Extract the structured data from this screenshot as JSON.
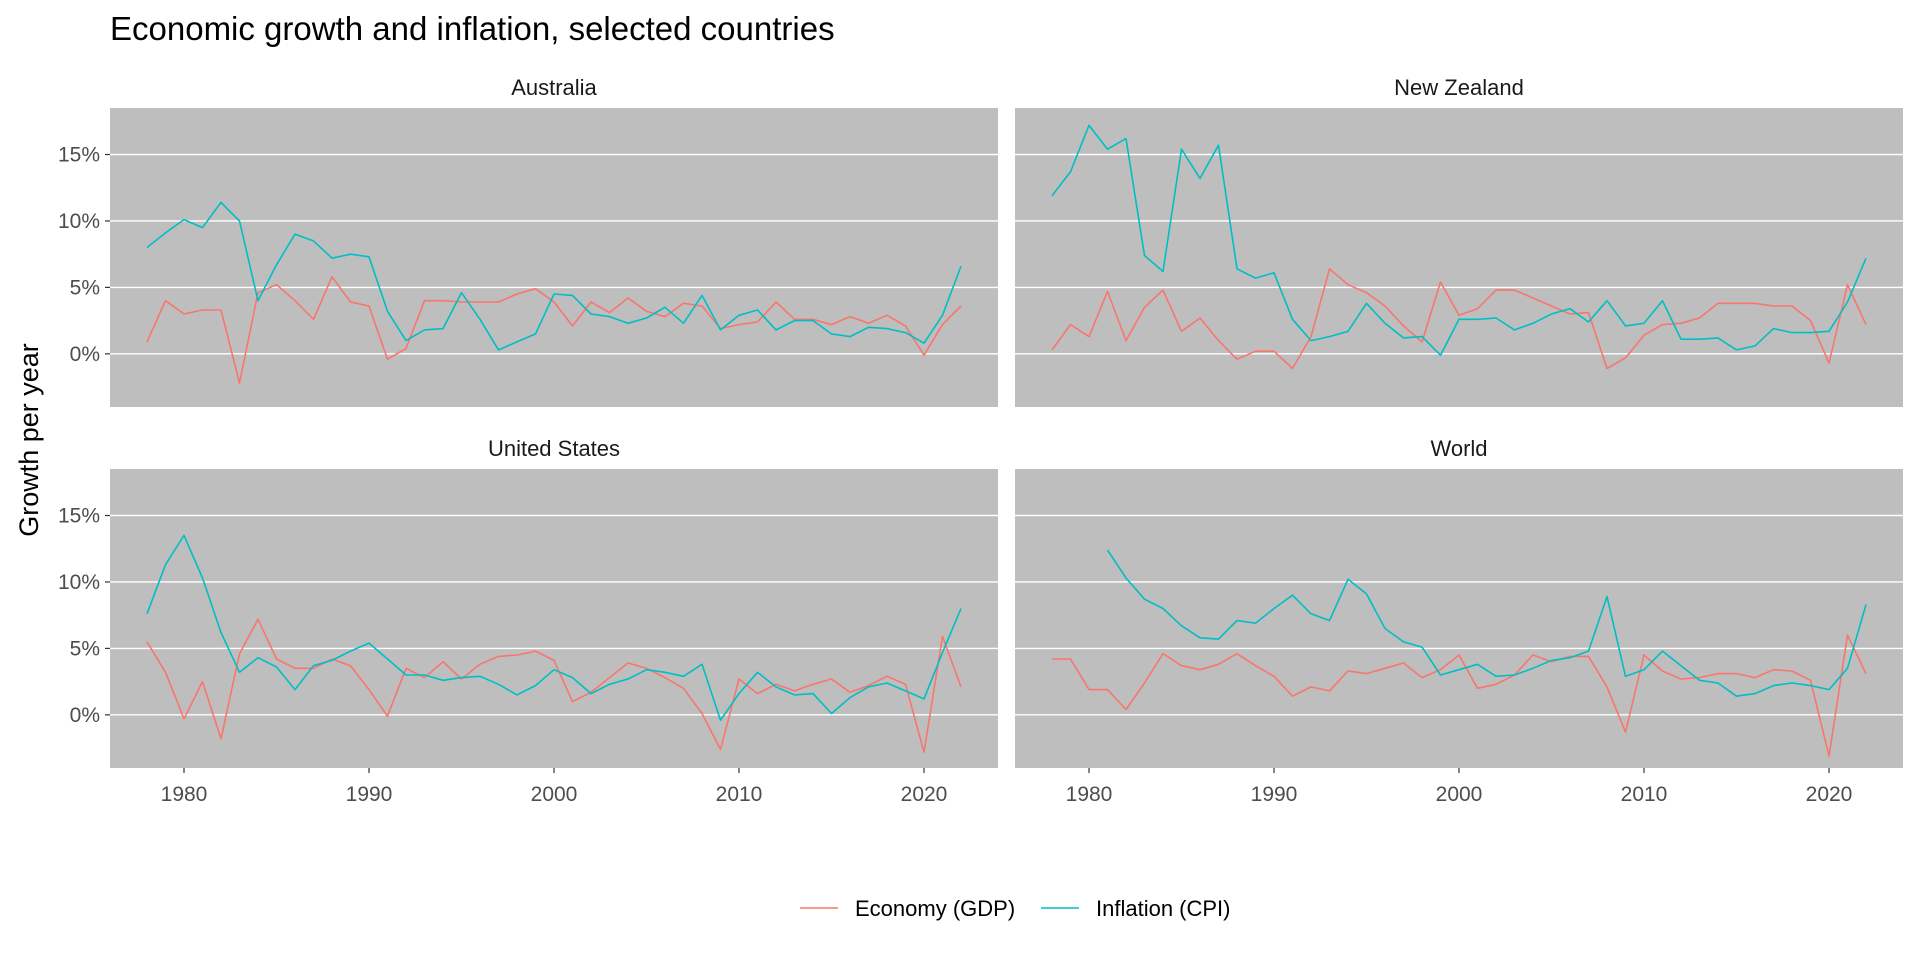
{
  "chart_data": {
    "type": "line",
    "title": "Economic growth and inflation, selected countries",
    "xlabel": "",
    "ylabel": "Growth per year",
    "xlim": [
      1976,
      2024
    ],
    "ylim": [
      -4,
      18.5
    ],
    "x_ticks": [
      1980,
      1990,
      2000,
      2010,
      2020
    ],
    "x_tick_labels": [
      "1980",
      "1990",
      "2000",
      "2010",
      "2020"
    ],
    "y_ticks": [
      0,
      5,
      10,
      15
    ],
    "y_tick_labels": [
      "0%",
      "5%",
      "10%",
      "15%"
    ],
    "grid": true,
    "legend_position": "bottom",
    "colors": {
      "panel_bg": "#bebebe",
      "grid": "#ffffff",
      "gdp": "#f8766d",
      "cpi": "#00bfc4"
    },
    "series_names": [
      "Economy (GDP)",
      "Inflation (CPI)"
    ],
    "panels": [
      {
        "name": "Australia",
        "x": [
          1978,
          1979,
          1980,
          1981,
          1982,
          1983,
          1984,
          1985,
          1986,
          1987,
          1988,
          1989,
          1990,
          1991,
          1992,
          1993,
          1994,
          1995,
          1996,
          1997,
          1998,
          1999,
          2000,
          2001,
          2002,
          2003,
          2004,
          2005,
          2006,
          2007,
          2008,
          2009,
          2010,
          2011,
          2012,
          2013,
          2014,
          2015,
          2016,
          2017,
          2018,
          2019,
          2020,
          2021,
          2022
        ],
        "series": [
          {
            "name": "Economy (GDP)",
            "values": [
              0.9,
              4.0,
              3.0,
              3.3,
              3.3,
              -2.2,
              4.6,
              5.2,
              4.0,
              2.6,
              5.8,
              3.9,
              3.6,
              -0.4,
              0.4,
              4.0,
              4.0,
              3.9,
              3.9,
              3.9,
              4.5,
              4.9,
              3.9,
              2.1,
              3.9,
              3.1,
              4.2,
              3.2,
              2.8,
              3.8,
              3.6,
              1.9,
              2.2,
              2.4,
              3.9,
              2.6,
              2.6,
              2.2,
              2.8,
              2.3,
              2.9,
              2.1,
              -0.1,
              2.2,
              3.6
            ]
          },
          {
            "name": "Inflation (CPI)",
            "values": [
              8.0,
              9.1,
              10.1,
              9.5,
              11.4,
              10.0,
              4.0,
              6.7,
              9.0,
              8.5,
              7.2,
              7.5,
              7.3,
              3.2,
              1.0,
              1.8,
              1.9,
              4.6,
              2.6,
              0.3,
              0.9,
              1.5,
              4.5,
              4.4,
              3.0,
              2.8,
              2.3,
              2.7,
              3.5,
              2.3,
              4.4,
              1.8,
              2.9,
              3.3,
              1.8,
              2.5,
              2.5,
              1.5,
              1.3,
              2.0,
              1.9,
              1.6,
              0.8,
              2.9,
              6.6
            ]
          }
        ]
      },
      {
        "name": "New Zealand",
        "x": [
          1978,
          1979,
          1980,
          1981,
          1982,
          1983,
          1984,
          1985,
          1986,
          1987,
          1988,
          1989,
          1990,
          1991,
          1992,
          1993,
          1994,
          1995,
          1996,
          1997,
          1998,
          1999,
          2000,
          2001,
          2002,
          2003,
          2004,
          2005,
          2006,
          2007,
          2008,
          2009,
          2010,
          2011,
          2012,
          2013,
          2014,
          2015,
          2016,
          2017,
          2018,
          2019,
          2020,
          2021,
          2022
        ],
        "series": [
          {
            "name": "Economy (GDP)",
            "values": [
              0.3,
              2.2,
              1.3,
              4.7,
              1.0,
              3.5,
              4.8,
              1.7,
              2.7,
              1.0,
              -0.4,
              0.2,
              0.2,
              -1.1,
              1.3,
              6.4,
              5.2,
              4.6,
              3.6,
              2.1,
              0.9,
              5.4,
              2.9,
              3.4,
              4.8,
              4.8,
              4.2,
              3.6,
              3.0,
              3.1,
              -1.1,
              -0.3,
              1.4,
              2.2,
              2.3,
              2.7,
              3.8,
              3.8,
              3.8,
              3.6,
              3.6,
              2.5,
              -0.7,
              5.2,
              2.2
            ]
          },
          {
            "name": "Inflation (CPI)",
            "values": [
              11.9,
              13.7,
              17.2,
              15.4,
              16.2,
              7.4,
              6.2,
              15.4,
              13.2,
              15.7,
              6.4,
              5.7,
              6.1,
              2.6,
              1.0,
              1.3,
              1.7,
              3.8,
              2.3,
              1.2,
              1.3,
              -0.1,
              2.6,
              2.6,
              2.7,
              1.8,
              2.3,
              3.0,
              3.4,
              2.4,
              4.0,
              2.1,
              2.3,
              4.0,
              1.1,
              1.1,
              1.2,
              0.3,
              0.6,
              1.9,
              1.6,
              1.6,
              1.7,
              3.9,
              7.2
            ]
          }
        ]
      },
      {
        "name": "United States",
        "x": [
          1978,
          1979,
          1980,
          1981,
          1982,
          1983,
          1984,
          1985,
          1986,
          1987,
          1988,
          1989,
          1990,
          1991,
          1992,
          1993,
          1994,
          1995,
          1996,
          1997,
          1998,
          1999,
          2000,
          2001,
          2002,
          2003,
          2004,
          2005,
          2006,
          2007,
          2008,
          2009,
          2010,
          2011,
          2012,
          2013,
          2014,
          2015,
          2016,
          2017,
          2018,
          2019,
          2020,
          2021,
          2022
        ],
        "series": [
          {
            "name": "Economy (GDP)",
            "values": [
              5.5,
              3.2,
              -0.3,
              2.5,
              -1.8,
              4.6,
              7.2,
              4.2,
              3.5,
              3.5,
              4.2,
              3.7,
              1.9,
              -0.1,
              3.5,
              2.8,
              4.0,
              2.7,
              3.8,
              4.4,
              4.5,
              4.8,
              4.1,
              1.0,
              1.7,
              2.8,
              3.9,
              3.5,
              2.8,
              2.0,
              0.1,
              -2.6,
              2.7,
              1.6,
              2.3,
              1.8,
              2.3,
              2.7,
              1.7,
              2.2,
              2.9,
              2.3,
              -2.8,
              5.9,
              2.1
            ]
          },
          {
            "name": "Inflation (CPI)",
            "values": [
              7.6,
              11.3,
              13.5,
              10.3,
              6.2,
              3.2,
              4.3,
              3.6,
              1.9,
              3.7,
              4.1,
              4.8,
              5.4,
              4.2,
              3.0,
              3.0,
              2.6,
              2.8,
              2.9,
              2.3,
              1.5,
              2.2,
              3.4,
              2.8,
              1.6,
              2.3,
              2.7,
              3.4,
              3.2,
              2.9,
              3.8,
              -0.4,
              1.6,
              3.2,
              2.1,
              1.5,
              1.6,
              0.1,
              1.3,
              2.1,
              2.4,
              1.8,
              1.2,
              4.7,
              8.0
            ]
          }
        ]
      },
      {
        "name": "World",
        "x": [
          1978,
          1979,
          1980,
          1981,
          1982,
          1983,
          1984,
          1985,
          1986,
          1987,
          1988,
          1989,
          1990,
          1991,
          1992,
          1993,
          1994,
          1995,
          1996,
          1997,
          1998,
          1999,
          2000,
          2001,
          2002,
          2003,
          2004,
          2005,
          2006,
          2007,
          2008,
          2009,
          2010,
          2011,
          2012,
          2013,
          2014,
          2015,
          2016,
          2017,
          2018,
          2019,
          2020,
          2021,
          2022
        ],
        "series": [
          {
            "name": "Economy (GDP)",
            "values": [
              4.2,
              4.2,
              1.9,
              1.9,
              0.4,
              2.4,
              4.6,
              3.7,
              3.4,
              3.8,
              4.6,
              3.7,
              2.9,
              1.4,
              2.1,
              1.8,
              3.3,
              3.1,
              3.5,
              3.9,
              2.8,
              3.4,
              4.5,
              2.0,
              2.3,
              3.0,
              4.5,
              4.0,
              4.4,
              4.4,
              2.1,
              -1.3,
              4.5,
              3.3,
              2.7,
              2.8,
              3.1,
              3.1,
              2.8,
              3.4,
              3.3,
              2.6,
              -3.1,
              6.0,
              3.1
            ]
          },
          {
            "name": "Inflation (CPI)",
            "values": [
              null,
              null,
              null,
              12.4,
              10.3,
              8.7,
              8.0,
              6.7,
              5.8,
              5.7,
              7.1,
              6.9,
              8.0,
              9.0,
              7.6,
              7.1,
              10.2,
              9.1,
              6.5,
              5.5,
              5.1,
              3.0,
              3.4,
              3.8,
              2.9,
              3.0,
              3.5,
              4.1,
              4.3,
              4.8,
              8.9,
              2.9,
              3.4,
              4.8,
              3.7,
              2.6,
              2.4,
              1.4,
              1.6,
              2.2,
              2.4,
              2.2,
              1.9,
              3.5,
              8.3
            ]
          }
        ]
      }
    ]
  }
}
